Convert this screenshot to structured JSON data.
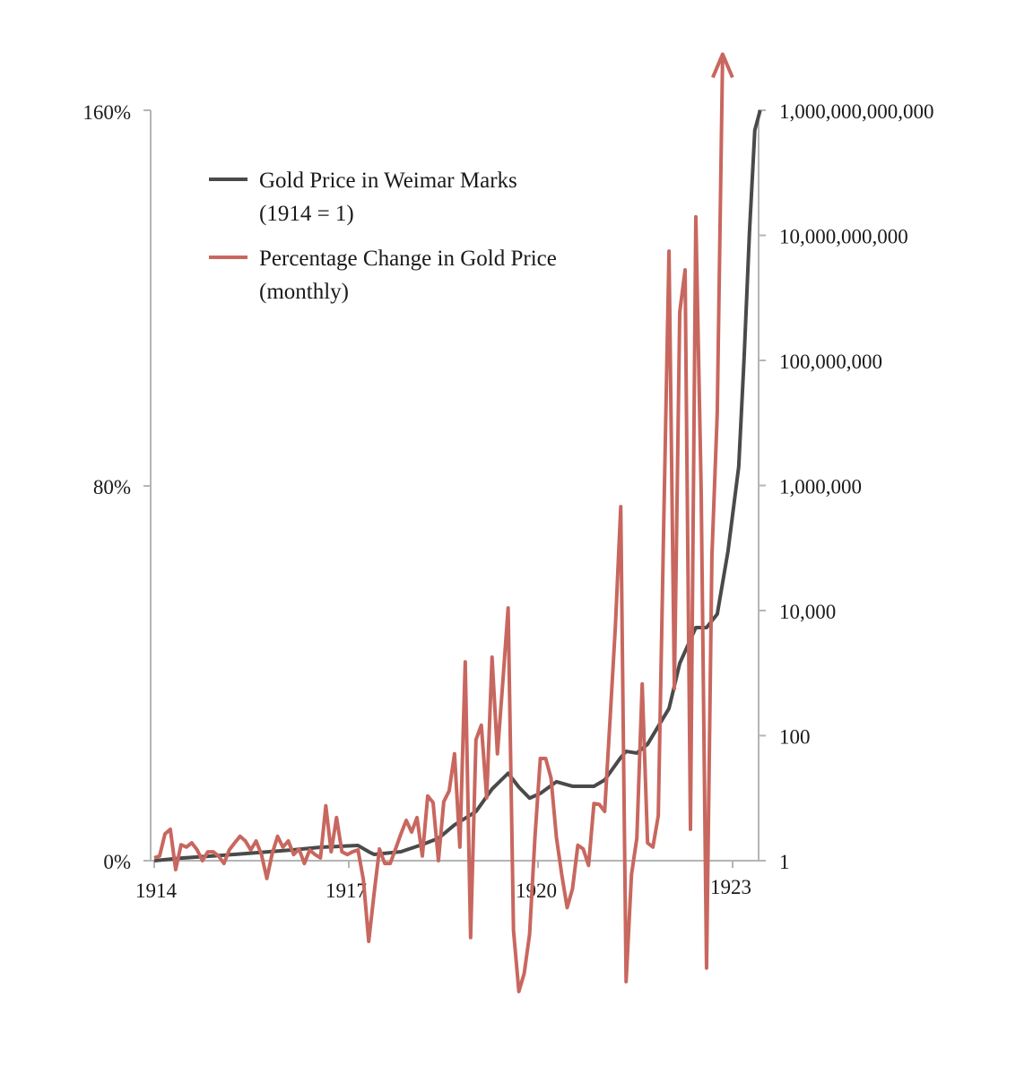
{
  "chart_data": {
    "type": "line",
    "title": "",
    "xlabel": "",
    "legend_position": "top-left",
    "grid": false,
    "x_ticks": [
      "1914",
      "1917",
      "1920",
      "1923"
    ],
    "left_axis": {
      "ticks": [
        "0%",
        "80%",
        "160%"
      ],
      "range": [
        0,
        160
      ],
      "scale": "linear"
    },
    "right_axis": {
      "ticks": [
        "1",
        "100",
        "10,000",
        "1,000,000",
        "100,000,000",
        "10,000,000,000",
        "1,000,000,000,000"
      ],
      "range": [
        1,
        1000000000000
      ],
      "scale": "log"
    },
    "legend": [
      {
        "line1": "Gold Price in Weimar Marks",
        "line2": "(1914 = 1)",
        "color": "#4a4a4a"
      },
      {
        "line1": "Percentage Change in Gold Price",
        "line2": "(monthly)",
        "color": "#c8675f"
      }
    ],
    "series": [
      {
        "name": "Percentage Change in Gold Price (monthly)",
        "axis": "left",
        "color": "#c8675f",
        "start": "1914-01",
        "frequency": "monthly",
        "continues_off_chart": true,
        "values": [
          0.6,
          1.0,
          5.7,
          6.7,
          -1.9,
          3.4,
          2.9,
          3.8,
          2.3,
          0,
          1.9,
          1.9,
          1.0,
          -0.6,
          2.3,
          3.8,
          5.2,
          4.2,
          2.3,
          4.2,
          1.3,
          -3.8,
          1.5,
          5.2,
          2.9,
          4.2,
          1.3,
          2.5,
          -0.6,
          2.3,
          1.3,
          0.6,
          11.7,
          1.9,
          9.2,
          1.9,
          1.3,
          1.9,
          2.3,
          -4,
          -17.2,
          -7,
          2.5,
          -0.6,
          -0.6,
          2.5,
          5.7,
          8.6,
          6.1,
          9.2,
          1.0,
          13.8,
          12.4,
          0,
          12.6,
          14.9,
          22.8,
          2.9,
          42.4,
          -16.4,
          25.8,
          28.9,
          13.4,
          43.4,
          22.8,
          38,
          53.9,
          -14.9,
          -27.9,
          -24,
          -15.7,
          5,
          21.8,
          21.8,
          17.6,
          5,
          -3,
          -10,
          -6,
          3.3,
          2.5,
          -1.0,
          12.2,
          12.0,
          10.5,
          30,
          50,
          75.5,
          -25.8,
          -3,
          4.8,
          37.7,
          3.8,
          2.9,
          9.6,
          71,
          130,
          36.7,
          117,
          126,
          6.7,
          137.3,
          78.8,
          -22.9,
          65,
          95.6,
          172
        ]
      },
      {
        "name": "Gold Price in Weimar Marks (1914 = 1)",
        "axis": "right",
        "color": "#4a4a4a",
        "points": [
          [
            "1914-01",
            1
          ],
          [
            "1914-06",
            1.1
          ],
          [
            "1915-04",
            1.26
          ],
          [
            "1916-03",
            1.49
          ],
          [
            "1916-08",
            1.64
          ],
          [
            "1917-03",
            1.75
          ],
          [
            "1917-05",
            1.39
          ],
          [
            "1917-06",
            1.26
          ],
          [
            "1917-11",
            1.39
          ],
          [
            "1918-03",
            1.81
          ],
          [
            "1918-06",
            2.28
          ],
          [
            "1918-09",
            3.74
          ],
          [
            "1919-01",
            6.1
          ],
          [
            "1919-04",
            14
          ],
          [
            "1919-07",
            25
          ],
          [
            "1919-09",
            15
          ],
          [
            "1919-11",
            10
          ],
          [
            "1920-01",
            11.9
          ],
          [
            "1920-04",
            18.3
          ],
          [
            "1920-07",
            15.5
          ],
          [
            "1920-11",
            15.5
          ],
          [
            "1921-01",
            19.5
          ],
          [
            "1921-04",
            44.6
          ],
          [
            "1921-05",
            56
          ],
          [
            "1921-07",
            52.6
          ],
          [
            "1921-09",
            73
          ],
          [
            "1922-01",
            272
          ],
          [
            "1922-03",
            1430
          ],
          [
            "1922-06",
            5350
          ],
          [
            "1922-08",
            5350
          ],
          [
            "1922-10",
            8800
          ],
          [
            "1922-12",
            89000
          ],
          [
            "1923-02",
            2000000
          ],
          [
            "1923-03",
            107000000
          ],
          [
            "1923-04",
            11000000000
          ],
          [
            "1923-05",
            480000000000
          ],
          [
            "1923-06",
            1000000000000
          ]
        ]
      }
    ]
  }
}
